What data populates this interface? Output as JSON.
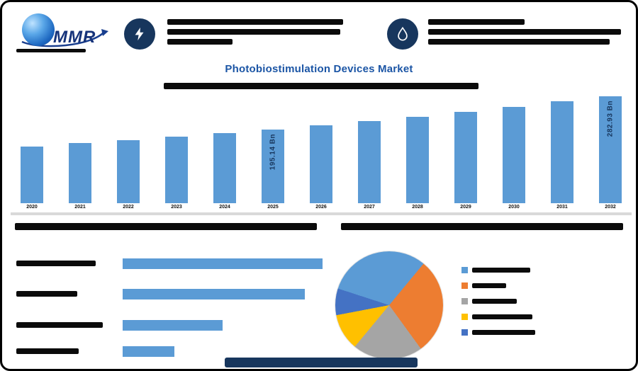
{
  "note": "Source screenshot is a low-resolution market infographic; all small body text, year labels, section headings, legend labels and the footer link are illegible and appear as solid dark bars. They are reproduced as redaction bars. Only clearly legible text is captured as data.",
  "brand": {
    "logo_text": "MMR"
  },
  "title": "Photobiostimulation Devices Market",
  "colors": {
    "accent_bar": "#5b9bd5",
    "title_blue": "#1b55a5",
    "icon_circle_navy": "#17365d",
    "divider_gray": "#d9d9d9",
    "redaction_black": "#0b0b0b"
  },
  "chart_data": [
    {
      "type": "bar",
      "title": "Photobiostimulation Devices Market",
      "unit": "USD Bn",
      "categories": [
        "2020",
        "2021",
        "2022",
        "2023",
        "2024",
        "2025",
        "2026",
        "2027",
        "2028",
        "2029",
        "2030",
        "2031",
        "2032"
      ],
      "values": [
        149.8,
        157.96,
        166.57,
        175.65,
        185.22,
        195.14,
        205.78,
        216.99,
        228.82,
        241.29,
        254.44,
        268.31,
        282.93
      ],
      "labeled_points": [
        {
          "index": 5,
          "label": "195.14 Bn"
        },
        {
          "index": 12,
          "label": "282.93 Bn"
        }
      ],
      "bar_color": "#5b9bd5",
      "ylim": [
        0,
        290
      ],
      "grid": false,
      "note": "Only the two vertical data labels are readable; remaining values estimated from bar heights; x-axis year labels illegible in source."
    },
    {
      "type": "bar",
      "orientation": "horizontal",
      "categories": [
        "segment-1",
        "segment-2",
        "segment-3",
        "segment-4"
      ],
      "values_pct_of_longest": [
        100,
        91,
        50,
        26
      ],
      "bar_color": "#5b9bd5",
      "note": "Row labels illegible in source (shown as redaction bars); values are relative bar lengths."
    },
    {
      "type": "pie",
      "slices": [
        {
          "color": "#5b9bd5",
          "share_pct": 31
        },
        {
          "color": "#ed7d31",
          "share_pct": 29
        },
        {
          "color": "#a5a5a5",
          "share_pct": 21
        },
        {
          "color": "#ffc000",
          "share_pct": 11
        },
        {
          "color": "#4472c4",
          "share_pct": 8
        }
      ],
      "start_angle_deg": 288,
      "legend_position": "right",
      "note": "Legend labels illegible in source; shares estimated from slice angles."
    }
  ]
}
